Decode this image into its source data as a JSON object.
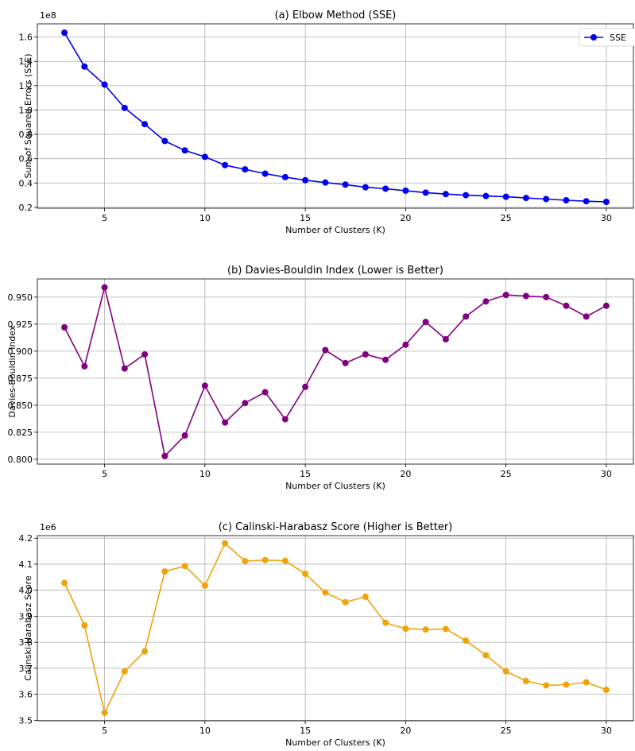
{
  "chart_data": [
    {
      "type": "line",
      "title": "(a) Elbow Method (SSE)",
      "xlabel": "Number of Clusters (K)",
      "ylabel": "Sum of Squared Errors (SSE)",
      "y_multiplier_label": "1e8",
      "xlim": [
        1.65,
        31.35
      ],
      "ylim": [
        0.1927,
        1.7086
      ],
      "xticks": [
        5,
        10,
        15,
        20,
        25,
        30
      ],
      "yticks": [
        0.2,
        0.4,
        0.6,
        0.8,
        1.0,
        1.2,
        1.4,
        1.6
      ],
      "ytick_labels": [
        "0.2",
        "0.4",
        "0.6",
        "0.8",
        "1.0",
        "1.2",
        "1.4",
        "1.6"
      ],
      "grid": true,
      "legend": "top-right",
      "color": "#0000ee",
      "series": [
        {
          "name": "SSE",
          "x": [
            3,
            4,
            5,
            6,
            7,
            8,
            9,
            10,
            11,
            12,
            13,
            14,
            15,
            16,
            17,
            18,
            19,
            20,
            21,
            22,
            23,
            24,
            25,
            26,
            27,
            28,
            29,
            30
          ],
          "y": [
            1.636,
            1.357,
            1.209,
            1.017,
            0.884,
            0.745,
            0.668,
            0.615,
            0.547,
            0.512,
            0.477,
            0.448,
            0.423,
            0.404,
            0.387,
            0.365,
            0.353,
            0.337,
            0.321,
            0.309,
            0.3,
            0.293,
            0.287,
            0.277,
            0.268,
            0.258,
            0.25,
            0.245
          ]
        }
      ]
    },
    {
      "type": "line",
      "title": "(b) Davies-Bouldin Index (Lower is Better)",
      "xlabel": "Number of Clusters (K)",
      "ylabel": "Davies-Bouldin Index",
      "xlim": [
        1.65,
        31.35
      ],
      "ylim": [
        0.7955,
        0.9668
      ],
      "xticks": [
        5,
        10,
        15,
        20,
        25,
        30
      ],
      "yticks": [
        0.8,
        0.825,
        0.85,
        0.875,
        0.9,
        0.925,
        0.95
      ],
      "ytick_labels": [
        "0.800",
        "0.825",
        "0.850",
        "0.875",
        "0.900",
        "0.925",
        "0.950"
      ],
      "grid": true,
      "color": "#800080",
      "series": [
        {
          "x": [
            3,
            4,
            5,
            6,
            7,
            8,
            9,
            10,
            11,
            12,
            13,
            14,
            15,
            16,
            17,
            18,
            19,
            20,
            21,
            22,
            23,
            24,
            25,
            26,
            27,
            28,
            29,
            30
          ],
          "y": [
            0.922,
            0.886,
            0.959,
            0.884,
            0.897,
            0.803,
            0.822,
            0.868,
            0.834,
            0.852,
            0.862,
            0.837,
            0.867,
            0.901,
            0.889,
            0.897,
            0.892,
            0.906,
            0.927,
            0.911,
            0.932,
            0.946,
            0.952,
            0.951,
            0.95,
            0.942,
            0.932,
            0.942
          ]
        }
      ]
    },
    {
      "type": "line",
      "title": "(c) Calinski-Harabasz Score (Higher is Better)",
      "xlabel": "Number of Clusters (K)",
      "ylabel": "Calinski-Harabasz Score",
      "y_multiplier_label": "1e6",
      "xlim": [
        1.65,
        31.35
      ],
      "ylim": [
        3.498,
        4.2098
      ],
      "xticks": [
        5,
        10,
        15,
        20,
        25,
        30
      ],
      "yticks": [
        3.5,
        3.6,
        3.7,
        3.8,
        3.9,
        4.0,
        4.1,
        4.2
      ],
      "ytick_labels": [
        "3.5",
        "3.6",
        "3.7",
        "3.8",
        "3.9",
        "4.0",
        "4.1",
        "4.2"
      ],
      "grid": true,
      "color": "#f0a30a",
      "series": [
        {
          "x": [
            3,
            4,
            5,
            6,
            7,
            8,
            9,
            10,
            11,
            12,
            13,
            14,
            15,
            16,
            17,
            18,
            19,
            20,
            21,
            22,
            23,
            24,
            25,
            26,
            27,
            28,
            29,
            30
          ],
          "y": [
            4.028,
            3.865,
            3.529,
            3.688,
            3.765,
            4.072,
            4.093,
            4.018,
            4.18,
            4.112,
            4.116,
            4.113,
            4.063,
            3.991,
            3.954,
            3.975,
            3.875,
            3.852,
            3.849,
            3.851,
            3.806,
            3.75,
            3.688,
            3.651,
            3.634,
            3.637,
            3.646,
            3.617
          ]
        }
      ]
    }
  ]
}
